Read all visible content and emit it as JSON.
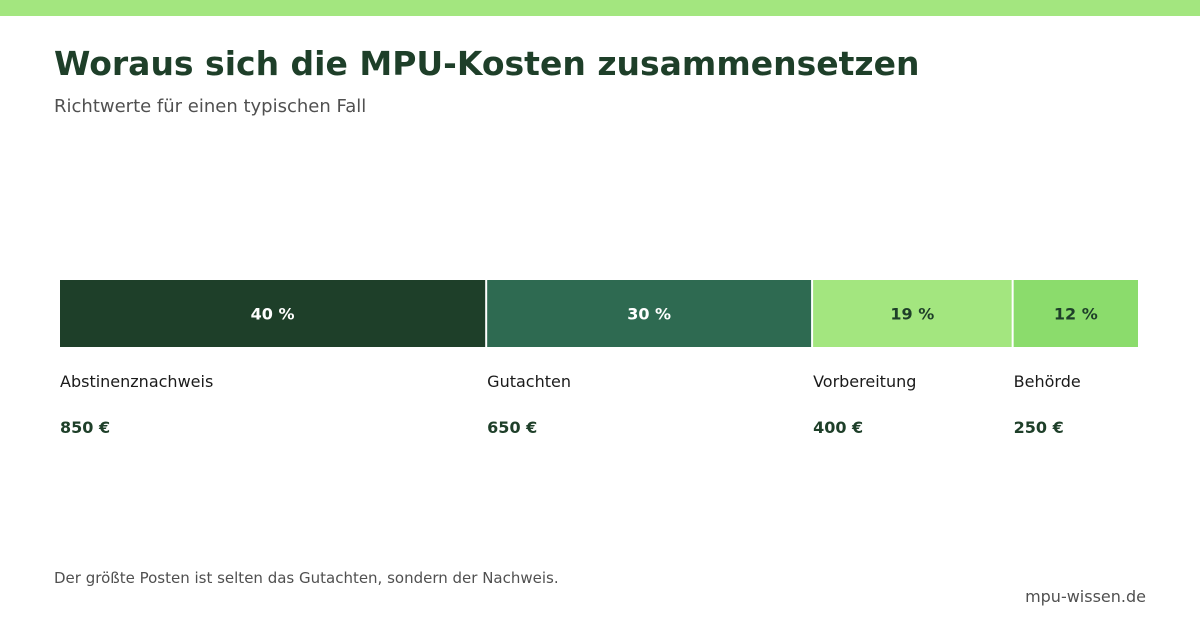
{
  "header": {
    "title": "Woraus sich die MPU-Kosten zusammensetzen",
    "subtitle": "Richtwerte für einen typischen Fall"
  },
  "chart_data": {
    "type": "bar",
    "orientation": "stacked-horizontal-100-percent",
    "categories": [
      "Abstinenznachweis",
      "Gutachten",
      "Vorbereitung",
      "Behörde"
    ],
    "values": [
      850,
      650,
      400,
      250
    ],
    "value_labels": [
      "850 €",
      "650 €",
      "400 €",
      "250 €"
    ],
    "percent_labels": [
      "40 %",
      "30 %",
      "19 %",
      "12 %"
    ],
    "colors": [
      "#1e3f29",
      "#2e6a51",
      "#a3e67f",
      "#8bdc6c"
    ],
    "label_colors": [
      "#ffffff",
      "#ffffff",
      "#1e3f29",
      "#1e3f29"
    ],
    "title": "Woraus sich die MPU-Kosten zusammensetzen",
    "subtitle": "Richtwerte für einen typischen Fall",
    "xlabel": "",
    "ylabel": "",
    "grid": false,
    "legend": "none"
  },
  "footer": {
    "note": "Der größte Posten ist selten das Gutachten, sondern der Nachweis.",
    "source": "mpu-wissen.de"
  },
  "colors": {
    "accent_bar": "#a3e67f",
    "title": "#1e3f29",
    "muted_text": "#505050"
  }
}
